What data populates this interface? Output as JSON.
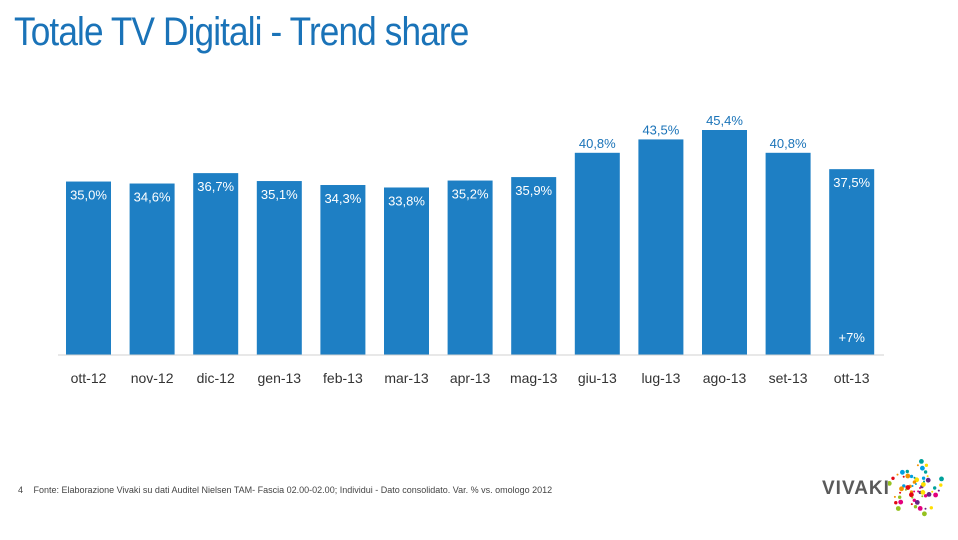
{
  "slide": {
    "title": "Totale TV Digitali - Trend share",
    "page_number": "4",
    "footnote": "Fonte: Elaborazione Vivaki su dati Auditel Nielsen TAM- Fascia 02.00-02.00; Individui - Dato consolidato. Var. % vs. omologo 2012",
    "logo_text": "VIVAKI"
  },
  "colors": {
    "bar": "#1e7fc4",
    "title": "#1a73b8"
  },
  "chart_data": {
    "type": "bar",
    "title": "",
    "xlabel": "",
    "ylabel": "",
    "categories": [
      "ott-12",
      "nov-12",
      "dic-12",
      "gen-13",
      "feb-13",
      "mar-13",
      "apr-13",
      "mag-13",
      "giu-13",
      "lug-13",
      "ago-13",
      "set-13",
      "ott-13"
    ],
    "values": [
      35.0,
      34.6,
      36.7,
      35.1,
      34.3,
      33.8,
      35.2,
      35.9,
      40.8,
      43.5,
      45.4,
      40.8,
      37.5
    ],
    "labels": [
      "35,0%",
      "34,6%",
      "36,7%",
      "35,1%",
      "34,3%",
      "33,8%",
      "35,2%",
      "35,9%",
      "40,8%",
      "43,5%",
      "45,4%",
      "40,8%",
      "37,5%"
    ],
    "annotation": {
      "category": "ott-13",
      "text": "+7%"
    },
    "grid": false,
    "legend": "none"
  }
}
